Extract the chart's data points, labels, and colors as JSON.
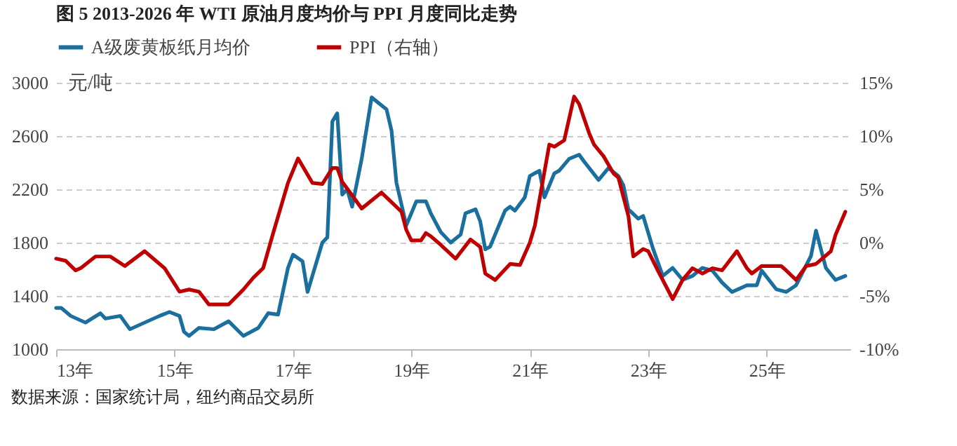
{
  "chart_data": {
    "type": "line",
    "title": "图 5 2013-2026 年 WTI 原油月度均价与 PPI 月度同比走势",
    "ylabel": "元/吨",
    "annotations": [
      "数据来源：国家统计局，纽约商品交易所"
    ],
    "xlim": [
      "2013-01",
      "2026-06"
    ],
    "xticks": [
      {
        "value": "2013-01",
        "label": "13年"
      },
      {
        "value": "2015-01",
        "label": "15年"
      },
      {
        "value": "2017-01",
        "label": "17年"
      },
      {
        "value": "2019-01",
        "label": "19年"
      },
      {
        "value": "2021-01",
        "label": "21年"
      },
      {
        "value": "2023-01",
        "label": "23年"
      },
      {
        "value": "2025-01",
        "label": "25年"
      }
    ],
    "ylim": [
      1000,
      3000
    ],
    "yticks": [
      1000,
      1400,
      1800,
      2200,
      2600,
      3000
    ],
    "y2lim": [
      -10,
      15
    ],
    "y2ticks": [
      {
        "value": -10,
        "label": "-10%"
      },
      {
        "value": -5,
        "label": "-5%"
      },
      {
        "value": 0,
        "label": "0%"
      },
      {
        "value": 5,
        "label": "5%"
      },
      {
        "value": 10,
        "label": "10%"
      },
      {
        "value": 15,
        "label": "15%"
      }
    ],
    "grid": "y",
    "legend": "top",
    "line_style": "solid",
    "series": [
      {
        "name": "A级废黄板纸月均价",
        "color": "#1a6f9e",
        "x": [
          "2013-01",
          "2013-02",
          "2013-04",
          "2013-07",
          "2013-10",
          "2013-11",
          "2014-02",
          "2014-04",
          "2014-07",
          "2014-10",
          "2014-12",
          "2015-02",
          "2015-03",
          "2015-04",
          "2015-06",
          "2015-09",
          "2015-12",
          "2016-03",
          "2016-06",
          "2016-08",
          "2016-10",
          "2016-12",
          "2017-01",
          "2017-03",
          "2017-04",
          "2017-07",
          "2017-08",
          "2017-09",
          "2017-10",
          "2017-11",
          "2017-12",
          "2018-01",
          "2018-03",
          "2018-05",
          "2018-08",
          "2018-09",
          "2018-10",
          "2018-12",
          "2019-02",
          "2019-04",
          "2019-05",
          "2019-07",
          "2019-09",
          "2019-11",
          "2019-12",
          "2020-02",
          "2020-03",
          "2020-04",
          "2020-05",
          "2020-08",
          "2020-09",
          "2020-10",
          "2020-12",
          "2021-01",
          "2021-03",
          "2021-04",
          "2021-06",
          "2021-07",
          "2021-09",
          "2021-11",
          "2021-12",
          "2022-03",
          "2022-05",
          "2022-07",
          "2022-08",
          "2022-09",
          "2022-11",
          "2022-12",
          "2023-02",
          "2023-04",
          "2023-06",
          "2023-08",
          "2023-10",
          "2023-12",
          "2024-02",
          "2024-04",
          "2024-06",
          "2024-09",
          "2024-11",
          "2024-12",
          "2025-03",
          "2025-05",
          "2025-07",
          "2025-10",
          "2025-11",
          "2026-01",
          "2026-03",
          "2026-05"
        ],
        "values": [
          1310,
          1310,
          1250,
          1200,
          1270,
          1230,
          1250,
          1150,
          1200,
          1250,
          1280,
          1250,
          1130,
          1100,
          1160,
          1150,
          1210,
          1100,
          1160,
          1270,
          1260,
          1610,
          1710,
          1660,
          1430,
          1800,
          1840,
          2710,
          2770,
          2160,
          2200,
          2070,
          2430,
          2890,
          2800,
          2640,
          2250,
          1930,
          2110,
          2110,
          2020,
          1880,
          1800,
          1860,
          2020,
          2050,
          1960,
          1750,
          1770,
          2040,
          2070,
          2040,
          2140,
          2300,
          2340,
          2140,
          2320,
          2340,
          2430,
          2460,
          2410,
          2270,
          2360,
          2300,
          2230,
          2050,
          1980,
          2000,
          1750,
          1550,
          1610,
          1520,
          1550,
          1610,
          1590,
          1500,
          1430,
          1480,
          1480,
          1590,
          1450,
          1430,
          1480,
          1700,
          1890,
          1610,
          1520,
          1550
        ]
      },
      {
        "name": "PPI（右轴）",
        "color": "#c00000",
        "axis": "y2",
        "x": [
          "2013-01",
          "2013-03",
          "2013-05",
          "2013-06",
          "2013-09",
          "2013-12",
          "2014-03",
          "2014-07",
          "2014-11",
          "2015-02",
          "2015-04",
          "2015-06",
          "2015-08",
          "2015-12",
          "2016-03",
          "2016-05",
          "2016-07",
          "2016-09",
          "2016-12",
          "2017-02",
          "2017-05",
          "2017-07",
          "2017-09",
          "2017-10",
          "2017-11",
          "2018-03",
          "2018-07",
          "2018-11",
          "2018-12",
          "2019-01",
          "2019-03",
          "2019-04",
          "2019-05",
          "2019-07",
          "2019-10",
          "2020-01",
          "2020-03",
          "2020-04",
          "2020-06",
          "2020-09",
          "2020-11",
          "2021-01",
          "2021-02",
          "2021-05",
          "2021-06",
          "2021-08",
          "2021-10",
          "2021-11",
          "2022-01",
          "2022-02",
          "2022-04",
          "2022-06",
          "2022-07",
          "2022-09",
          "2022-10",
          "2022-12",
          "2023-01",
          "2023-03",
          "2023-06",
          "2023-08",
          "2023-10",
          "2023-12",
          "2024-02",
          "2024-04",
          "2024-07",
          "2024-09",
          "2024-10",
          "2024-12",
          "2025-04",
          "2025-05",
          "2025-07",
          "2025-09",
          "2025-11",
          "2026-02",
          "2026-03",
          "2026-05"
        ],
        "values": [
          -1.5,
          -1.7,
          -2.6,
          -2.4,
          -1.3,
          -1.3,
          -2.2,
          -0.8,
          -2.4,
          -4.6,
          -4.4,
          -4.6,
          -5.8,
          -5.8,
          -4.4,
          -3.3,
          -2.4,
          0.9,
          5.6,
          7.9,
          5.6,
          5.5,
          7.0,
          7.0,
          5.7,
          3.2,
          4.7,
          2.9,
          1.2,
          0.2,
          0.2,
          0.9,
          0.6,
          -0.2,
          -1.5,
          0.3,
          -0.4,
          -2.9,
          -3.5,
          -2.0,
          -2.1,
          0.0,
          1.6,
          9.2,
          9.0,
          9.6,
          13.7,
          13.0,
          10.3,
          9.2,
          8.1,
          6.5,
          6.1,
          2.5,
          -1.3,
          -0.6,
          -0.8,
          -2.6,
          -5.3,
          -3.5,
          -2.4,
          -2.9,
          -2.4,
          -2.6,
          -0.8,
          -2.4,
          -2.9,
          -2.2,
          -2.2,
          -2.6,
          -3.5,
          -2.2,
          -2.0,
          -0.8,
          0.7,
          2.9
        ]
      }
    ]
  }
}
